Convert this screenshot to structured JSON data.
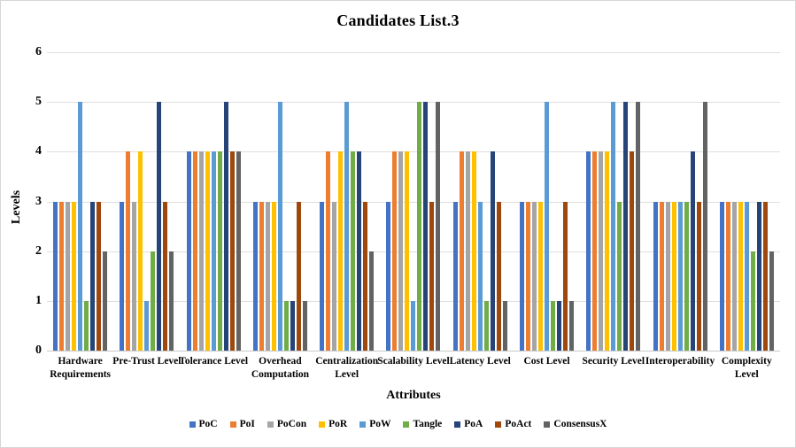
{
  "title": "Candidates List.3",
  "axes": {
    "y_label": "Levels",
    "x_label": "Attributes",
    "y_ticks": [
      0,
      1,
      2,
      3,
      4,
      5,
      6
    ]
  },
  "colors": {
    "gridline": "#dedede",
    "axis_line": "#c9c9c9"
  },
  "chart_data": {
    "type": "bar",
    "title": "Candidates List.3",
    "xlabel": "Attributes",
    "ylabel": "Levels",
    "ylim": [
      0,
      6
    ],
    "grid": true,
    "legend_position": "bottom",
    "categories": [
      "Hardware\nRequirements",
      "Pre-Trust Level",
      "Tolerance Level",
      "Overhead\nComputation",
      "Centralization\nLevel",
      "Scalability Level",
      "Latency Level",
      "Cost Level",
      "Security Level",
      "Interoperability",
      "Complexity\nLevel"
    ],
    "series": [
      {
        "name": "PoC",
        "color": "#4472C4",
        "values": [
          3,
          3,
          4,
          3,
          3,
          3,
          3,
          3,
          4,
          3,
          3
        ]
      },
      {
        "name": "PoI",
        "color": "#ED7D31",
        "values": [
          3,
          4,
          4,
          3,
          4,
          4,
          4,
          3,
          4,
          3,
          3
        ]
      },
      {
        "name": "PoCon",
        "color": "#A5A5A5",
        "values": [
          3,
          3,
          4,
          3,
          3,
          4,
          4,
          3,
          4,
          3,
          3
        ]
      },
      {
        "name": "PoR",
        "color": "#FFC000",
        "values": [
          3,
          4,
          4,
          3,
          4,
          4,
          4,
          3,
          4,
          3,
          3
        ]
      },
      {
        "name": "PoW",
        "color": "#5B9BD5",
        "values": [
          5,
          1,
          4,
          5,
          5,
          1,
          3,
          5,
          5,
          3,
          3
        ]
      },
      {
        "name": "Tangle",
        "color": "#70AD47",
        "values": [
          1,
          2,
          4,
          1,
          4,
          5,
          1,
          1,
          3,
          3,
          2
        ]
      },
      {
        "name": "PoA",
        "color": "#264478",
        "values": [
          3,
          5,
          5,
          1,
          4,
          5,
          4,
          1,
          5,
          4,
          3
        ]
      },
      {
        "name": "PoAct",
        "color": "#9E480E",
        "values": [
          3,
          3,
          4,
          3,
          3,
          3,
          3,
          3,
          4,
          3,
          3
        ]
      },
      {
        "name": "ConsensusX",
        "color": "#636363",
        "values": [
          2,
          2,
          4,
          1,
          2,
          5,
          1,
          1,
          5,
          5,
          2
        ]
      }
    ]
  }
}
